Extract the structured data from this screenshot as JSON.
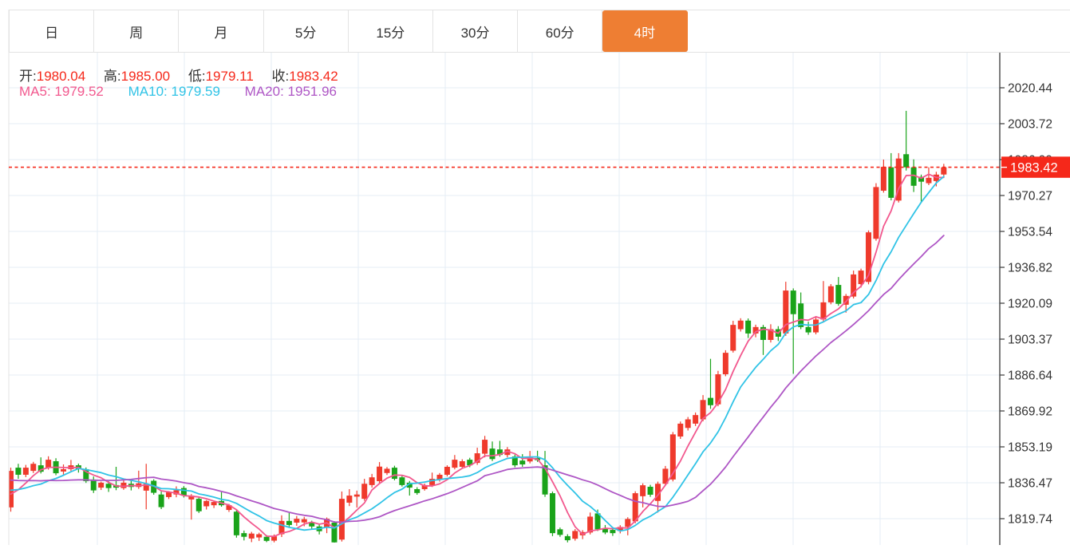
{
  "tabs": {
    "items": [
      {
        "label": "日",
        "active": false
      },
      {
        "label": "周",
        "active": false
      },
      {
        "label": "月",
        "active": false
      },
      {
        "label": "5分",
        "active": false
      },
      {
        "label": "15分",
        "active": false
      },
      {
        "label": "30分",
        "active": false
      },
      {
        "label": "60分",
        "active": false
      },
      {
        "label": "4时",
        "active": true
      }
    ],
    "active_color": "#ee7e33"
  },
  "header": {
    "ohlc": [
      {
        "label": "开:",
        "value": "1980.04"
      },
      {
        "label": "高:",
        "value": "1985.00"
      },
      {
        "label": "低:",
        "value": "1979.11"
      },
      {
        "label": "收:",
        "value": "1983.42"
      }
    ],
    "ma_legend": [
      {
        "label": "MA5:",
        "value": "1979.52",
        "color": "#f2588e"
      },
      {
        "label": "MA10:",
        "value": "1979.59",
        "color": "#30c3e6"
      },
      {
        "label": "MA20:",
        "value": "1951.96",
        "color": "#ae56c5"
      }
    ]
  },
  "axis": {
    "tick_labels": [
      "2020.44",
      "2003.72",
      "1986.99",
      "1970.27",
      "1953.54",
      "1936.82",
      "1920.09",
      "1903.37",
      "1886.64",
      "1869.92",
      "1853.19",
      "1836.47",
      "1819.74"
    ],
    "current_price_label": "1983.42"
  },
  "colors": {
    "up": "#ef3a2c",
    "down": "#1aa31a",
    "ma5": "#f2588e",
    "ma10": "#30c3e6",
    "ma20": "#ae56c5",
    "grid": "#e4edf5",
    "axis_line": "#444444",
    "tick_text": "#333333",
    "price_line": "#f5281a",
    "price_label_bg": "#f5281a",
    "price_label_text": "#ffffff"
  },
  "chart_data": {
    "type": "candlestick",
    "title": "",
    "legend": {
      "MA5": 1979.52,
      "MA10": 1979.59,
      "MA20": 1951.96
    },
    "last_bar": {
      "open": 1980.04,
      "high": 1985.0,
      "low": 1979.11,
      "close": 1983.42
    },
    "current_price": 1983.42,
    "y_ticks": [
      2020.44,
      2003.72,
      1986.99,
      1970.27,
      1953.54,
      1936.82,
      1920.09,
      1903.37,
      1886.64,
      1869.92,
      1853.19,
      1836.47,
      1819.74
    ],
    "ylim": [
      1807.5,
      2036.9
    ],
    "grid": true,
    "ma_periods": [
      5,
      10,
      20
    ],
    "ma_seed_closes": [
      1846,
      1845,
      1845,
      1844,
      1844,
      1843,
      1843,
      1842,
      1841,
      1840,
      1838,
      1837,
      1836,
      1835,
      1834,
      1832,
      1830,
      1828,
      1828,
      1828
    ],
    "candles_ohlc": [
      [
        1825.0,
        1843.5,
        1823.0,
        1842.0
      ],
      [
        1843.5,
        1845.3,
        1838.3,
        1840.2
      ],
      [
        1840.2,
        1844.8,
        1839.1,
        1843.5
      ],
      [
        1842.0,
        1846.2,
        1841.0,
        1845.3
      ],
      [
        1844.6,
        1848.3,
        1840.8,
        1841.6
      ],
      [
        1843.5,
        1848.8,
        1842.6,
        1847.2
      ],
      [
        1846.5,
        1847.9,
        1840.0,
        1840.9
      ],
      [
        1841.7,
        1845.0,
        1840.3,
        1842.8
      ],
      [
        1842.8,
        1847.1,
        1841.9,
        1844.6
      ],
      [
        1844.6,
        1845.4,
        1841.2,
        1842.8
      ],
      [
        1842.8,
        1843.6,
        1836.4,
        1837.2
      ],
      [
        1838.0,
        1839.4,
        1831.7,
        1832.9
      ],
      [
        1834.2,
        1837.0,
        1833.1,
        1836.5
      ],
      [
        1836.0,
        1837.2,
        1832.2,
        1834.0
      ],
      [
        1835.4,
        1843.9,
        1833.0,
        1834.2
      ],
      [
        1834.0,
        1838.2,
        1833.2,
        1836.5
      ],
      [
        1836.0,
        1837.4,
        1832.9,
        1834.5
      ],
      [
        1834.5,
        1842.1,
        1833.6,
        1836.2
      ],
      [
        1832.8,
        1845.3,
        1824.1,
        1836.0
      ],
      [
        1837.4,
        1838.1,
        1830.9,
        1831.8
      ],
      [
        1831.0,
        1832.4,
        1824.2,
        1825.1
      ],
      [
        1829.8,
        1832.6,
        1828.9,
        1832.0
      ],
      [
        1831.0,
        1834.8,
        1829.7,
        1833.0
      ],
      [
        1834.0,
        1834.9,
        1829.6,
        1830.5
      ],
      [
        1828.7,
        1831.2,
        1819.3,
        1830.5
      ],
      [
        1829.0,
        1829.8,
        1822.4,
        1823.2
      ],
      [
        1825.5,
        1828.4,
        1824.0,
        1828.0
      ],
      [
        1826.0,
        1828.2,
        1824.7,
        1827.5
      ],
      [
        1828.0,
        1832.1,
        1825.3,
        1826.0
      ],
      [
        1823.8,
        1826.6,
        1822.9,
        1826.0
      ],
      [
        1823.0,
        1823.8,
        1810.9,
        1812.0
      ],
      [
        1813.0,
        1814.2,
        1809.6,
        1811.3
      ],
      [
        1810.5,
        1813.6,
        1808.8,
        1812.8
      ],
      [
        1811.0,
        1813.2,
        1809.4,
        1812.5
      ],
      [
        1811.3,
        1812.1,
        1808.8,
        1809.4
      ],
      [
        1809.5,
        1812.4,
        1808.7,
        1811.5
      ],
      [
        1812.5,
        1821.3,
        1811.2,
        1818.7
      ],
      [
        1818.7,
        1822.4,
        1815.5,
        1816.8
      ],
      [
        1817.9,
        1821.0,
        1816.4,
        1819.7
      ],
      [
        1818.0,
        1820.6,
        1816.2,
        1819.5
      ],
      [
        1817.9,
        1818.8,
        1814.6,
        1816.1
      ],
      [
        1816.1,
        1817.0,
        1812.4,
        1813.9
      ],
      [
        1815.7,
        1820.3,
        1813.0,
        1819.7
      ],
      [
        1817.9,
        1818.6,
        1808.6,
        1808.7
      ],
      [
        1810.0,
        1832.4,
        1809.1,
        1829.0
      ],
      [
        1827.2,
        1833.5,
        1825.6,
        1830.5
      ],
      [
        1830.0,
        1832.8,
        1824.9,
        1831.0
      ],
      [
        1829.0,
        1838.3,
        1828.1,
        1836.0
      ],
      [
        1835.4,
        1840.6,
        1834.2,
        1839.0
      ],
      [
        1837.2,
        1846.1,
        1836.3,
        1844.0
      ],
      [
        1841.0,
        1843.8,
        1840.1,
        1843.0
      ],
      [
        1843.5,
        1844.4,
        1837.6,
        1838.3
      ],
      [
        1839.0,
        1840.0,
        1834.7,
        1835.4
      ],
      [
        1836.5,
        1837.3,
        1830.5,
        1834.2
      ],
      [
        1833.5,
        1834.4,
        1830.9,
        1831.7
      ],
      [
        1833.5,
        1836.1,
        1832.8,
        1835.4
      ],
      [
        1835.4,
        1841.2,
        1834.5,
        1838.3
      ],
      [
        1837.9,
        1841.0,
        1837.0,
        1840.2
      ],
      [
        1840.2,
        1844.6,
        1839.4,
        1843.9
      ],
      [
        1843.5,
        1849.4,
        1842.7,
        1847.2
      ],
      [
        1843.9,
        1847.4,
        1843.0,
        1846.5
      ],
      [
        1847.2,
        1848.1,
        1843.7,
        1844.6
      ],
      [
        1845.7,
        1852.8,
        1844.8,
        1850.2
      ],
      [
        1850.0,
        1858.3,
        1848.3,
        1856.5
      ],
      [
        1852.4,
        1855.7,
        1846.6,
        1847.5
      ],
      [
        1852.0,
        1856.0,
        1848.6,
        1849.4
      ],
      [
        1849.4,
        1853.1,
        1848.3,
        1852.0
      ],
      [
        1848.7,
        1849.6,
        1843.7,
        1844.6
      ],
      [
        1846.8,
        1849.8,
        1843.9,
        1845.0
      ],
      [
        1846.4,
        1851.3,
        1845.5,
        1848.7
      ],
      [
        1848.0,
        1851.4,
        1846.2,
        1847.0
      ],
      [
        1844.6,
        1851.3,
        1829.9,
        1831.0
      ],
      [
        1831.6,
        1832.4,
        1811.6,
        1813.0
      ],
      [
        1814.8,
        1815.6,
        1811.3,
        1812.2
      ],
      [
        1811.6,
        1812.5,
        1808.7,
        1809.7
      ],
      [
        1810.4,
        1814.9,
        1809.5,
        1814.0
      ],
      [
        1812.0,
        1814.4,
        1810.2,
        1813.5
      ],
      [
        1813.3,
        1822.6,
        1812.4,
        1820.7
      ],
      [
        1822.2,
        1824.0,
        1814.0,
        1814.8
      ],
      [
        1815.0,
        1816.8,
        1812.5,
        1813.3
      ],
      [
        1814.5,
        1815.3,
        1811.7,
        1813.0
      ],
      [
        1814.0,
        1816.7,
        1812.9,
        1815.9
      ],
      [
        1815.9,
        1820.4,
        1812.0,
        1819.6
      ],
      [
        1818.5,
        1832.5,
        1817.6,
        1831.6
      ],
      [
        1830.2,
        1836.2,
        1825.0,
        1835.3
      ],
      [
        1834.6,
        1835.5,
        1829.9,
        1830.9
      ],
      [
        1828.0,
        1837.0,
        1822.6,
        1836.0
      ],
      [
        1836.0,
        1844.3,
        1835.1,
        1843.0
      ],
      [
        1838.0,
        1860.1,
        1837.1,
        1859.0
      ],
      [
        1858.0,
        1865.0,
        1856.9,
        1864.0
      ],
      [
        1862.0,
        1867.1,
        1860.8,
        1866.0
      ],
      [
        1864.0,
        1869.2,
        1862.9,
        1868.0
      ],
      [
        1866.0,
        1877.3,
        1865.1,
        1875.0
      ],
      [
        1876.0,
        1894.2,
        1870.9,
        1872.6
      ],
      [
        1873.0,
        1888.6,
        1872.1,
        1887.0
      ],
      [
        1887.0,
        1898.2,
        1886.1,
        1897.0
      ],
      [
        1898.0,
        1911.9,
        1897.1,
        1910.0
      ],
      [
        1908.0,
        1913.1,
        1906.9,
        1912.0
      ],
      [
        1912.0,
        1913.0,
        1903.9,
        1906.0
      ],
      [
        1906.0,
        1910.1,
        1904.2,
        1909.0
      ],
      [
        1909.0,
        1910.0,
        1896.0,
        1903.0
      ],
      [
        1903.0,
        1910.3,
        1901.8,
        1908.0
      ],
      [
        1908.0,
        1909.4,
        1902.5,
        1904.5
      ],
      [
        1906.0,
        1930.1,
        1904.9,
        1926.0
      ],
      [
        1926.0,
        1927.0,
        1887.2,
        1915.0
      ],
      [
        1920.0,
        1925.1,
        1908.0,
        1909.0
      ],
      [
        1909.0,
        1911.5,
        1905.4,
        1906.5
      ],
      [
        1906.5,
        1913.6,
        1905.6,
        1912.5
      ],
      [
        1912.5,
        1930.4,
        1911.6,
        1920.5
      ],
      [
        1920.5,
        1929.0,
        1919.6,
        1928.0
      ],
      [
        1928.6,
        1932.3,
        1918.9,
        1919.8
      ],
      [
        1919.4,
        1924.4,
        1915.7,
        1923.5
      ],
      [
        1923.2,
        1935.3,
        1922.3,
        1933.5
      ],
      [
        1929.0,
        1936.2,
        1927.4,
        1935.3
      ],
      [
        1930.0,
        1954.0,
        1928.9,
        1953.1
      ],
      [
        1950.1,
        1976.0,
        1949.2,
        1974.2
      ],
      [
        1972.5,
        1987.0,
        1971.6,
        1983.6
      ],
      [
        1983.4,
        1990.0,
        1968.0,
        1969.2
      ],
      [
        1967.9,
        1990.0,
        1967.0,
        1987.5
      ],
      [
        1989.5,
        2009.7,
        1981.9,
        1983.4
      ],
      [
        1983.4,
        1987.1,
        1971.9,
        1974.8
      ],
      [
        1979.0,
        1980.0,
        1966.8,
        1976.7
      ],
      [
        1976.0,
        1983.4,
        1975.1,
        1978.5
      ],
      [
        1977.0,
        1981.3,
        1974.5,
        1980.0
      ],
      [
        1980.04,
        1985.0,
        1979.11,
        1983.42
      ]
    ]
  }
}
